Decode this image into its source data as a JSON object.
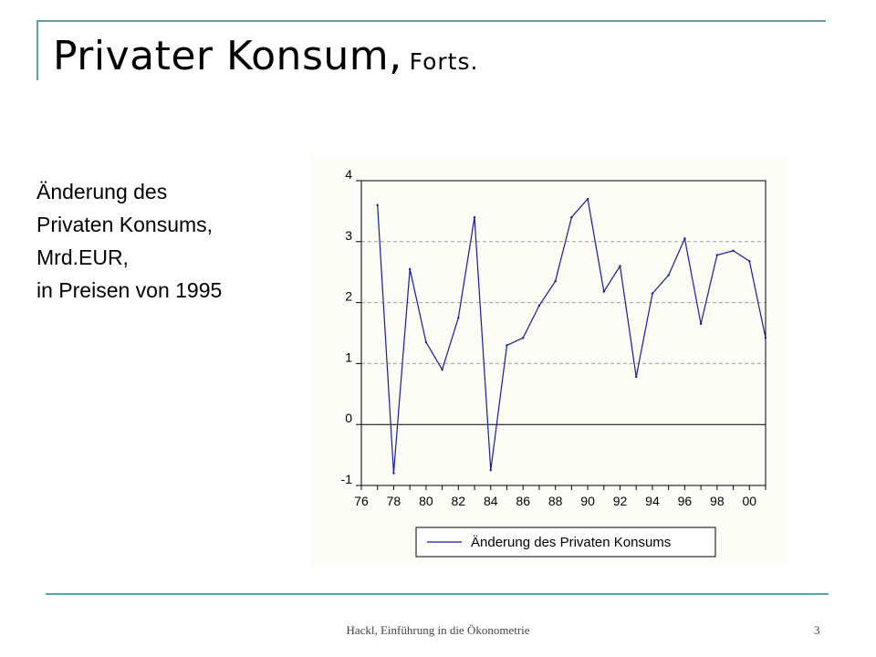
{
  "slide": {
    "title_main": "Privater Konsum,",
    "title_sub": "Forts.",
    "description": [
      "Änderung des",
      "Privaten Konsums,",
      "Mrd.EUR,",
      "in Preisen von 1995"
    ],
    "footer": "Hackl, Einführung in die Ökonometrie",
    "page_number": "3"
  },
  "colors": {
    "accent": "#5fa0a0",
    "series": "#1a1aa0",
    "grid": "#a0a0a0",
    "panel_background": "#fdfdf7"
  },
  "chart_data": {
    "type": "line",
    "title": "",
    "xlabel": "",
    "ylabel": "",
    "x": [
      1977,
      1978,
      1979,
      1980,
      1981,
      1982,
      1983,
      1984,
      1985,
      1986,
      1987,
      1988,
      1989,
      1990,
      1991,
      1992,
      1993,
      1994,
      1995,
      1996,
      1997,
      1998,
      1999,
      2000,
      2001
    ],
    "series": [
      {
        "name": "Änderung des Privaten Konsums",
        "values": [
          3.6,
          -0.8,
          2.55,
          1.35,
          0.9,
          1.75,
          3.4,
          -0.75,
          1.3,
          1.42,
          1.95,
          2.35,
          3.4,
          3.7,
          2.18,
          2.6,
          0.78,
          2.15,
          2.45,
          3.05,
          1.65,
          2.78,
          2.85,
          2.68,
          1.42
        ]
      }
    ],
    "xlim": [
      1976,
      2001
    ],
    "ylim": [
      -1,
      4
    ],
    "yticks": [
      "-1",
      "0",
      "1",
      "2",
      "3",
      "4"
    ],
    "xticks": [
      "76",
      "78",
      "80",
      "82",
      "84",
      "86",
      "88",
      "90",
      "92",
      "94",
      "96",
      "98",
      "00"
    ],
    "grid": "horizontal dashed",
    "legend": "bottom-center"
  }
}
